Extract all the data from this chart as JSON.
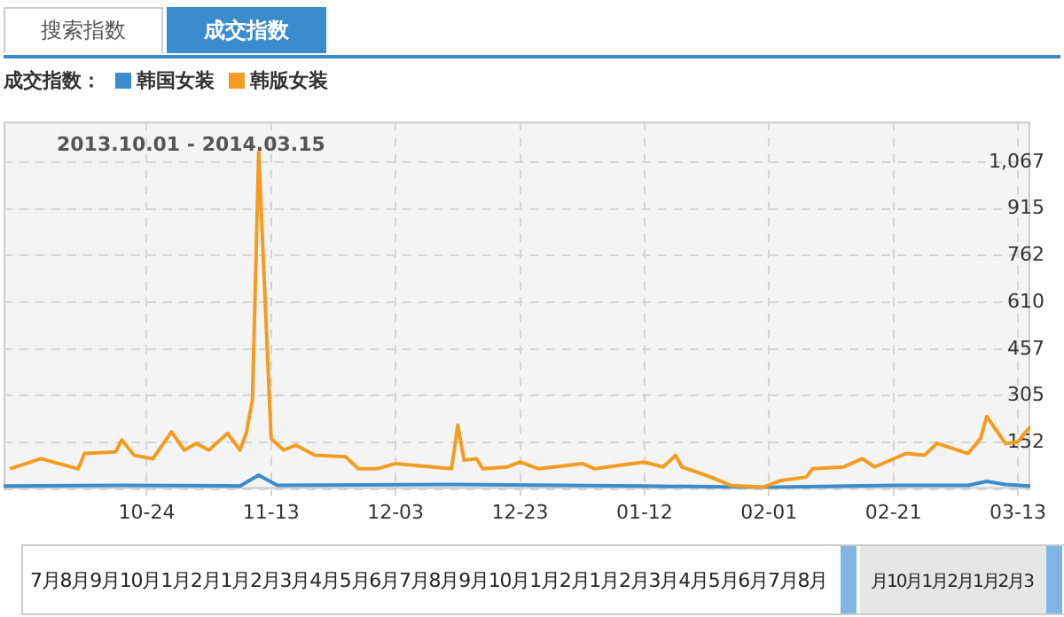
{
  "chart_data": {
    "type": "line",
    "subtitle": "2013.10.01 - 2014.03.15",
    "legend_title": "成交指数：",
    "annotations": [
      "搜索指数",
      "成交指数",
      "7月8月9月10月1月2月1月2月3月4月5月6月7月8月9月10月1月2月1月2月3月4月5月6月7月8月",
      "月10月1月2月1月2月3"
    ],
    "series": [
      {
        "name": "韩国女装",
        "color": "#3a8ccd",
        "x": [
          "2013-10-01",
          "2013-10-20",
          "2013-11-08",
          "2013-11-11",
          "2013-11-14",
          "2013-12-12",
          "2014-01-12",
          "2014-01-31",
          "2014-02-21",
          "2014-03-05",
          "2014-03-08",
          "2014-03-11",
          "2014-03-15"
        ],
        "values": [
          10,
          12,
          10,
          45,
          12,
          15,
          10,
          5,
          12,
          12,
          25,
          15,
          10
        ]
      },
      {
        "name": "韩版女装",
        "color": "#f39c1f",
        "x": [
          "2013-10-02",
          "2013-10-07",
          "2013-10-13",
          "2013-10-14",
          "2013-10-19",
          "2013-10-20",
          "2013-10-22",
          "2013-10-25",
          "2013-10-28",
          "2013-10-30",
          "2013-11-01",
          "2013-11-03",
          "2013-11-06",
          "2013-11-08",
          "2013-11-09",
          "2013-11-10",
          "2013-11-11",
          "2013-11-13",
          "2013-11-15",
          "2013-11-17",
          "2013-11-20",
          "2013-11-25",
          "2013-11-27",
          "2013-11-30",
          "2013-12-03",
          "2013-12-12",
          "2013-12-13",
          "2013-12-14",
          "2013-12-16",
          "2013-12-17",
          "2013-12-21",
          "2013-12-23",
          "2013-12-26",
          "2014-01-02",
          "2014-01-04",
          "2014-01-10",
          "2014-01-12",
          "2014-01-15",
          "2014-01-17",
          "2014-01-18",
          "2014-01-22",
          "2014-01-26",
          "2014-01-31",
          "2014-02-03",
          "2014-02-07",
          "2014-02-08",
          "2014-02-13",
          "2014-02-16",
          "2014-02-18",
          "2014-02-23",
          "2014-02-26",
          "2014-02-28",
          "2014-03-05",
          "2014-03-07",
          "2014-03-08",
          "2014-03-11",
          "2014-03-13",
          "2014-03-15"
        ],
        "values": [
          66,
          99,
          66,
          116,
          121,
          160,
          110,
          99,
          187,
          127,
          149,
          127,
          182,
          127,
          182,
          292,
          1100,
          165,
          127,
          143,
          110,
          105,
          66,
          66,
          83,
          66,
          209,
          94,
          99,
          66,
          72,
          88,
          66,
          83,
          66,
          83,
          88,
          72,
          110,
          72,
          44,
          11,
          6,
          28,
          39,
          66,
          72,
          99,
          72,
          116,
          110,
          149,
          116,
          165,
          237,
          149,
          154,
          204
        ]
      }
    ],
    "xlim": [
      "2013-10-01",
      "2014-03-15"
    ],
    "xticks": [
      {
        "value": "2013-10-24",
        "label": "10-24"
      },
      {
        "value": "2013-11-13",
        "label": "11-13"
      },
      {
        "value": "2013-12-03",
        "label": "12-03"
      },
      {
        "value": "2013-12-23",
        "label": "12-23"
      },
      {
        "value": "2014-01-12",
        "label": "01-12"
      },
      {
        "value": "2014-02-01",
        "label": "02-01"
      },
      {
        "value": "2014-02-21",
        "label": "02-21"
      },
      {
        "value": "2014-03-13",
        "label": "03-13"
      }
    ],
    "ylim": [
      0,
      1200
    ],
    "yticks": [
      {
        "value": 0,
        "label": null
      },
      152,
      305,
      457,
      610,
      762,
      915,
      {
        "value": 1067,
        "label": "1,067"
      }
    ],
    "grid": true,
    "legend": "top left",
    "marker": "none",
    "line_style": "solid"
  }
}
